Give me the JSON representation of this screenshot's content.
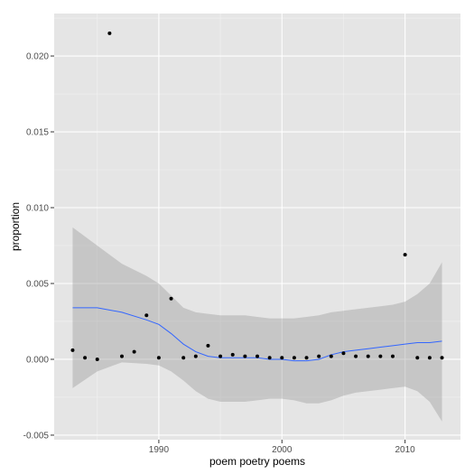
{
  "chart_data": {
    "type": "scatter",
    "title": "",
    "xlabel": "poem poetry poems",
    "ylabel": "proportion",
    "xlim": [
      1981.5,
      2014.5
    ],
    "ylim": [
      -0.0053,
      0.0228
    ],
    "x_ticks": [
      1990,
      2000,
      2010
    ],
    "x_tick_labels": [
      "1990",
      "2000",
      "2010"
    ],
    "y_ticks": [
      -0.005,
      0.0,
      0.005,
      0.01,
      0.015,
      0.02
    ],
    "y_tick_labels": [
      "-0.005",
      "0.000",
      "0.005",
      "0.010",
      "0.015",
      "0.020"
    ],
    "grid": true,
    "points": {
      "x": [
        1983,
        1984,
        1985,
        1986,
        1987,
        1988,
        1989,
        1990,
        1991,
        1992,
        1993,
        1994,
        1995,
        1996,
        1997,
        1998,
        1999,
        2000,
        2001,
        2002,
        2003,
        2004,
        2005,
        2006,
        2007,
        2008,
        2009,
        2010,
        2011,
        2012,
        2013
      ],
      "y": [
        0.0006,
        0.0001,
        0.0,
        0.0215,
        0.0002,
        0.0005,
        0.0029,
        0.0001,
        0.004,
        0.0001,
        0.0002,
        0.0009,
        0.0002,
        0.0003,
        0.0002,
        0.0002,
        0.0001,
        0.0001,
        0.0001,
        0.0001,
        0.0002,
        0.0002,
        0.0004,
        0.0002,
        0.0002,
        0.0002,
        0.0002,
        0.0069,
        0.0001,
        0.0001,
        0.0001
      ]
    },
    "smooth": {
      "x": [
        1983,
        1985,
        1987,
        1989,
        1990,
        1991,
        1992,
        1993,
        1994,
        1995,
        1996,
        1997,
        1998,
        1999,
        2000,
        2001,
        2002,
        2003,
        2004,
        2005,
        2006,
        2007,
        2008,
        2009,
        2010,
        2011,
        2012,
        2013
      ],
      "y": [
        0.0034,
        0.0034,
        0.0031,
        0.0026,
        0.0023,
        0.0017,
        0.001,
        0.0005,
        0.0002,
        0.0001,
        0.0001,
        0.0001,
        0.0001,
        0.0,
        0.0,
        -0.0001,
        -0.0001,
        0.0,
        0.0003,
        0.0005,
        0.0006,
        0.0007,
        0.0008,
        0.0009,
        0.001,
        0.0011,
        0.0011,
        0.0012
      ],
      "upper": [
        0.0087,
        0.0075,
        0.0063,
        0.0055,
        0.005,
        0.0042,
        0.0034,
        0.0031,
        0.003,
        0.0029,
        0.0029,
        0.0029,
        0.0028,
        0.0027,
        0.0027,
        0.0027,
        0.0028,
        0.0029,
        0.0031,
        0.0032,
        0.0033,
        0.0034,
        0.0035,
        0.0036,
        0.0038,
        0.0043,
        0.005,
        0.0064
      ],
      "lower": [
        -0.0019,
        -0.0008,
        -0.0002,
        -0.0003,
        -0.0004,
        -0.0008,
        -0.0014,
        -0.0021,
        -0.0026,
        -0.0028,
        -0.0028,
        -0.0028,
        -0.0027,
        -0.0026,
        -0.0026,
        -0.0027,
        -0.0029,
        -0.0029,
        -0.0027,
        -0.0024,
        -0.0022,
        -0.0021,
        -0.002,
        -0.0019,
        -0.0018,
        -0.0021,
        -0.0028,
        -0.0041
      ]
    },
    "colors": {
      "panel_background": "#e5e5e5",
      "grid_major": "#ffffff",
      "grid_minor": "#f2f2f2",
      "ribbon": "#999999",
      "smooth_line": "#3366ff",
      "point": "#000000"
    }
  }
}
